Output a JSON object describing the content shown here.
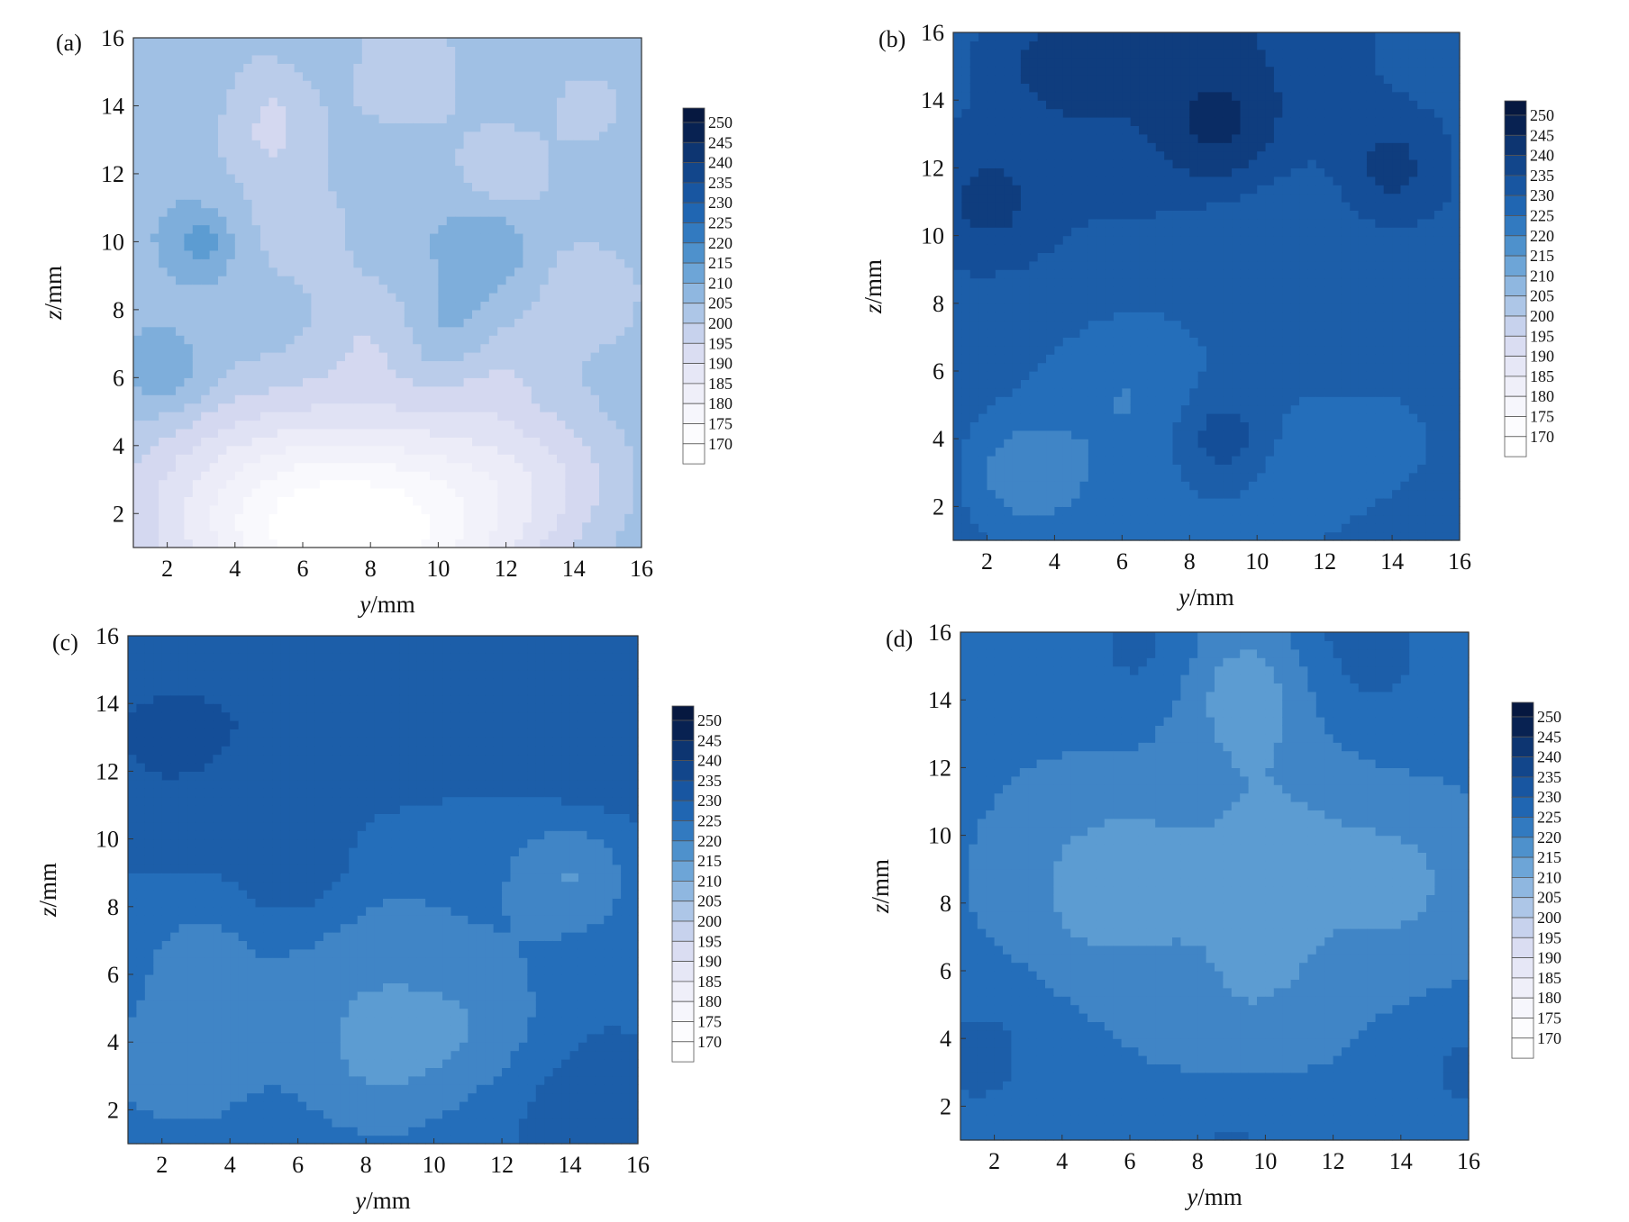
{
  "chart_data": [
    {
      "type": "heatmap",
      "panel_label": "(a)",
      "xlabel_italic": "y",
      "xlabel_unit": "/mm",
      "ylabel_italic": "z",
      "ylabel_unit": "/mm",
      "xlim": [
        1,
        16
      ],
      "ylim": [
        1,
        16
      ],
      "xticks": [
        2,
        4,
        6,
        8,
        10,
        12,
        14,
        16
      ],
      "yticks": [
        2,
        4,
        6,
        8,
        10,
        12,
        14,
        16
      ],
      "colorbar_ticks": [
        250,
        245,
        240,
        235,
        230,
        225,
        220,
        215,
        210,
        205,
        200,
        195,
        190,
        185,
        180,
        175,
        170
      ],
      "value_range": [
        170,
        250
      ],
      "base_value": 207,
      "blobs": [
        {
          "y": 8.5,
          "z": 1.3,
          "r": 2.6,
          "v": -24
        },
        {
          "y": 6,
          "z": 1.6,
          "r": 2.4,
          "v": -18
        },
        {
          "y": 3,
          "z": 2.2,
          "r": 2.4,
          "v": -12
        },
        {
          "y": 11.5,
          "z": 2.5,
          "r": 2.0,
          "v": -12
        },
        {
          "y": 14,
          "z": 3.2,
          "r": 1.6,
          "v": -6
        },
        {
          "y": 5,
          "z": 13,
          "r": 1.2,
          "v": -9
        },
        {
          "y": 5.5,
          "z": 15,
          "r": 1.0,
          "v": -9
        },
        {
          "y": 9,
          "z": 15,
          "r": 1.4,
          "v": -8
        },
        {
          "y": 6,
          "z": 10.3,
          "r": 1.1,
          "v": -8
        },
        {
          "y": 12,
          "z": 12,
          "r": 1.2,
          "v": -8
        },
        {
          "y": 14.5,
          "z": 8.5,
          "r": 1.3,
          "v": -8
        },
        {
          "y": 8,
          "z": 7.5,
          "r": 1.2,
          "v": -7
        },
        {
          "y": 11.5,
          "z": 6.5,
          "r": 1.2,
          "v": -7
        },
        {
          "y": 6,
          "z": 15.2,
          "r": 0.9,
          "v": 7
        },
        {
          "y": 2,
          "z": 6,
          "r": 0.9,
          "v": 7
        },
        {
          "y": 11.5,
          "z": 10,
          "r": 0.9,
          "v": 7
        },
        {
          "y": 10.5,
          "z": 7.2,
          "r": 1.0,
          "v": 7
        },
        {
          "y": 3,
          "z": 10,
          "r": 0.6,
          "v": 8
        },
        {
          "y": 14.5,
          "z": 14,
          "r": 0.8,
          "v": -8
        }
      ]
    },
    {
      "type": "heatmap",
      "panel_label": "(b)",
      "xlabel_italic": "y",
      "xlabel_unit": "/mm",
      "ylabel_italic": "z",
      "ylabel_unit": "/mm",
      "xlim": [
        1,
        16
      ],
      "ylim": [
        1,
        16
      ],
      "xticks": [
        2,
        4,
        6,
        8,
        10,
        12,
        14,
        16
      ],
      "yticks": [
        2,
        4,
        6,
        8,
        10,
        12,
        14,
        16
      ],
      "colorbar_ticks": [
        250,
        245,
        240,
        235,
        230,
        225,
        220,
        215,
        210,
        205,
        200,
        195,
        190,
        185,
        180,
        175,
        170
      ],
      "value_range": [
        170,
        250
      ],
      "base_value": 231,
      "blobs": [
        {
          "y": 8,
          "z": 15,
          "r": 3.0,
          "v": 8
        },
        {
          "y": 9,
          "z": 13,
          "r": 1.2,
          "v": 8
        },
        {
          "y": 2,
          "z": 11,
          "r": 1.2,
          "v": 8
        },
        {
          "y": 14,
          "z": 12,
          "r": 1.0,
          "v": 8
        },
        {
          "y": 9,
          "z": 4,
          "r": 1.0,
          "v": 9
        },
        {
          "y": 4,
          "z": 15,
          "r": 1.2,
          "v": 6
        },
        {
          "y": 5,
          "z": 3,
          "r": 2.5,
          "v": -7
        },
        {
          "y": 11,
          "z": 3,
          "r": 2.0,
          "v": -6
        },
        {
          "y": 6.5,
          "z": 6,
          "r": 1.5,
          "v": -5
        },
        {
          "y": 3,
          "z": 3,
          "r": 1.0,
          "v": -8
        },
        {
          "y": 10,
          "z": 10.5,
          "r": 2.0,
          "v": -4
        },
        {
          "y": 14,
          "z": 4,
          "r": 1.2,
          "v": -4
        }
      ]
    },
    {
      "type": "heatmap",
      "panel_label": "(c)",
      "xlabel_italic": "y",
      "xlabel_unit": "/mm",
      "ylabel_italic": "z",
      "ylabel_unit": "/mm",
      "xlim": [
        1,
        16
      ],
      "ylim": [
        1,
        16
      ],
      "xticks": [
        2,
        4,
        6,
        8,
        10,
        12,
        14,
        16
      ],
      "yticks": [
        2,
        4,
        6,
        8,
        10,
        12,
        14,
        16
      ],
      "colorbar_ticks": [
        250,
        245,
        240,
        235,
        230,
        225,
        220,
        215,
        210,
        205,
        200,
        195,
        190,
        185,
        180,
        175,
        170
      ],
      "value_range": [
        170,
        250
      ],
      "base_value": 226,
      "blobs": [
        {
          "y": 2,
          "z": 13,
          "r": 2.5,
          "v": 7
        },
        {
          "y": 8,
          "z": 14,
          "r": 2.5,
          "v": 6
        },
        {
          "y": 15,
          "z": 13,
          "r": 2.0,
          "v": 6
        },
        {
          "y": 6,
          "z": 9,
          "r": 1.2,
          "v": 7
        },
        {
          "y": 14.5,
          "z": 2,
          "r": 1.8,
          "v": 5
        },
        {
          "y": 8,
          "z": 6,
          "r": 2.8,
          "v": -6
        },
        {
          "y": 14,
          "z": 9,
          "r": 1.2,
          "v": -9
        },
        {
          "y": 2.5,
          "z": 3.5,
          "r": 1.5,
          "v": -7
        },
        {
          "y": 8.5,
          "z": 3.5,
          "r": 1.5,
          "v": -6
        },
        {
          "y": 11.5,
          "z": 4.5,
          "r": 1.5,
          "v": -5
        },
        {
          "y": 3,
          "z": 6.5,
          "r": 1.0,
          "v": -5
        }
      ]
    },
    {
      "type": "heatmap",
      "panel_label": "(d)",
      "xlabel_italic": "y",
      "xlabel_unit": "/mm",
      "ylabel_italic": "z",
      "ylabel_unit": "/mm",
      "xlim": [
        1,
        16
      ],
      "ylim": [
        1,
        16
      ],
      "xticks": [
        2,
        4,
        6,
        8,
        10,
        12,
        14,
        16
      ],
      "yticks": [
        2,
        4,
        6,
        8,
        10,
        12,
        14,
        16
      ],
      "colorbar_ticks": [
        250,
        245,
        240,
        235,
        230,
        225,
        220,
        215,
        210,
        205,
        200,
        195,
        190,
        185,
        180,
        175,
        170
      ],
      "value_range": [
        170,
        250
      ],
      "base_value": 223,
      "blobs": [
        {
          "y": 9.5,
          "z": 14.5,
          "r": 1.5,
          "v": -10
        },
        {
          "y": 5.5,
          "z": 8.5,
          "r": 1.8,
          "v": -9
        },
        {
          "y": 10.5,
          "z": 10,
          "r": 2.2,
          "v": -6
        },
        {
          "y": 10,
          "z": 6.5,
          "r": 1.5,
          "v": -5
        },
        {
          "y": 14,
          "z": 8.5,
          "r": 1.5,
          "v": -6
        },
        {
          "y": 9,
          "z": 3.5,
          "r": 1.5,
          "v": -4
        },
        {
          "y": 12.5,
          "z": 15.5,
          "r": 2.0,
          "v": 7
        },
        {
          "y": 6.5,
          "z": 15.5,
          "r": 1.5,
          "v": 6
        },
        {
          "y": 1.5,
          "z": 3.5,
          "r": 1.5,
          "v": 6
        },
        {
          "y": 9,
          "z": 1.5,
          "r": 1.5,
          "v": 6
        },
        {
          "y": 16,
          "z": 3,
          "r": 1.0,
          "v": 6
        }
      ]
    }
  ]
}
